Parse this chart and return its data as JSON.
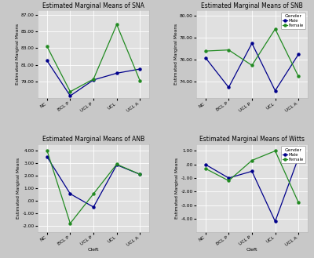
{
  "x_labels": [
    "NC",
    "BCL P",
    "UCL P",
    "UCL",
    "UCL A"
  ],
  "sna": {
    "title": "Estimated Marginal Means of SNA",
    "male": [
      81.5,
      77.3,
      79.2,
      80.0,
      80.5
    ],
    "female": [
      83.2,
      77.8,
      79.3,
      85.8,
      79.1
    ],
    "ylim": [
      77.0,
      87.5
    ],
    "yticks": [
      79.0,
      81.0,
      83.0,
      85.0,
      87.0
    ],
    "ytick_labels": [
      "79.00",
      "81.00",
      "83.00",
      "85.00",
      "87.00"
    ]
  },
  "snb": {
    "title": "Estimated Marginal Means of SNB",
    "male": [
      76.2,
      73.5,
      77.5,
      73.2,
      76.5
    ],
    "female": [
      76.8,
      76.9,
      75.5,
      78.8,
      74.5
    ],
    "ylim": [
      72.5,
      80.5
    ],
    "yticks": [
      74.0,
      76.0,
      78.0,
      80.0
    ],
    "ytick_labels": [
      "74.00",
      "76.00",
      "78.00",
      "80.00"
    ]
  },
  "anb": {
    "title": "Estimated Marginal Means of ANB",
    "male": [
      3.5,
      0.55,
      -0.5,
      2.85,
      2.1
    ],
    "female": [
      4.0,
      -1.8,
      0.55,
      2.9,
      2.1
    ],
    "ylim": [
      -2.5,
      4.5
    ],
    "yticks": [
      -2.0,
      -1.0,
      0.0,
      1.0,
      2.0,
      3.0,
      4.0
    ],
    "ytick_labels": [
      "-2.00",
      "-1.00",
      ".00",
      "1.00",
      "2.00",
      "3.00",
      "4.00"
    ]
  },
  "witts": {
    "title": "Estimated Marginal Means of Witts",
    "male": [
      0.0,
      -1.0,
      -0.5,
      -4.2,
      0.5
    ],
    "female": [
      -0.3,
      -1.2,
      0.3,
      1.0,
      -2.8
    ],
    "ylim": [
      -5.0,
      1.5
    ],
    "yticks": [
      -4.0,
      -3.0,
      -2.0,
      -1.0,
      0.0,
      1.0
    ],
    "ytick_labels": [
      "-4.00",
      "-3.00",
      "-2.00",
      "-1.00",
      ".00",
      "1.00"
    ]
  },
  "male_color": "#00008B",
  "female_color": "#228B22",
  "bg_color": "#E0E0E0",
  "outer_bg": "#C8C8C8",
  "ylabel": "Estimated Marginal Means",
  "xlabel": "Cleft",
  "legend_title": "Gender",
  "legend_male": "Male",
  "legend_female": "Female"
}
